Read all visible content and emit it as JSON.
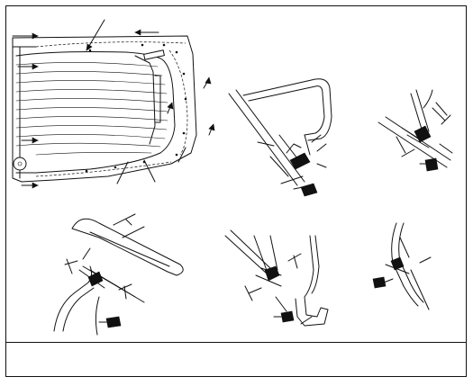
{
  "caption": {
    "text": ""
  }
}
